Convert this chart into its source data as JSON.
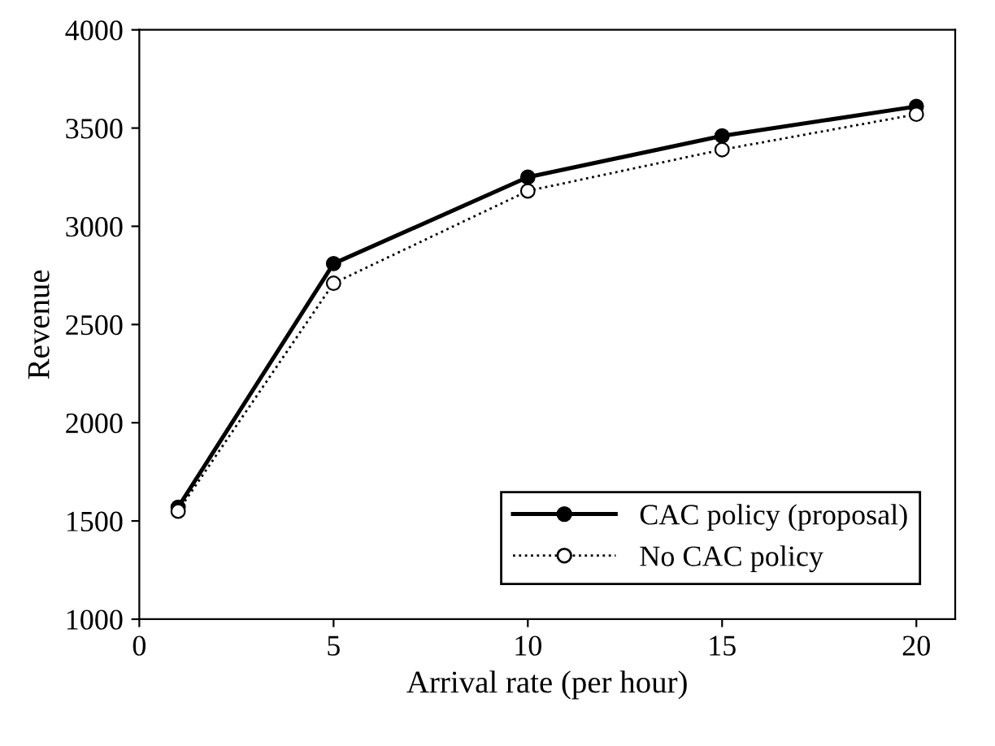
{
  "chart_data": {
    "type": "line",
    "xlabel": "Arrival rate (per hour)",
    "ylabel": "Revenue",
    "x": [
      1,
      5,
      10,
      15,
      20
    ],
    "series": [
      {
        "name": "CAC policy (proposal)",
        "color": "#000000",
        "values": [
          1570,
          2810,
          3250,
          3460,
          3610
        ],
        "marker": "circle",
        "line_style": "solid"
      },
      {
        "name": "No CAC policy",
        "color": "#000000",
        "values": [
          1550,
          2710,
          3180,
          3390,
          3570
        ],
        "marker": "circle",
        "line_style": "dotted"
      }
    ],
    "xlim": [
      0,
      21
    ],
    "xticks": [
      0,
      5,
      10,
      15,
      20
    ],
    "ylim": [
      1000,
      4000
    ],
    "yticks": [
      1000,
      1500,
      2000,
      2500,
      3000,
      3500,
      4000
    ],
    "grid": false,
    "legend": "bottom right"
  }
}
